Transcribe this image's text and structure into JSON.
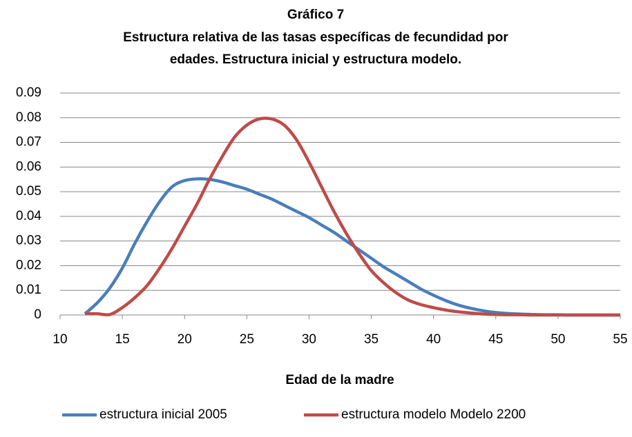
{
  "chart_data": {
    "type": "line",
    "title": "Gráfico 7",
    "subtitle": [
      "Estructura relativa de las tasas específicas de fecundidad por",
      "edades. Estructura inicial y estructura modelo."
    ],
    "x_label": "Edad de la madre",
    "x": [
      12,
      13,
      14,
      15,
      16,
      17,
      18,
      19,
      20,
      21,
      22,
      23,
      24,
      25,
      26,
      27,
      28,
      29,
      30,
      31,
      32,
      33,
      34,
      35,
      36,
      37,
      38,
      39,
      40,
      41,
      42,
      43,
      44,
      45,
      46,
      47,
      48,
      49,
      50,
      51,
      52,
      53,
      54,
      55
    ],
    "series": [
      {
        "name": "estructura inicial 2005",
        "color": "#4a7ebb",
        "values": [
          0.0005,
          0.005,
          0.011,
          0.019,
          0.029,
          0.038,
          0.046,
          0.052,
          0.0545,
          0.0552,
          0.055,
          0.054,
          0.0525,
          0.051,
          0.049,
          0.047,
          0.0445,
          0.042,
          0.0395,
          0.0365,
          0.0335,
          0.03,
          0.0265,
          0.023,
          0.0195,
          0.0165,
          0.0135,
          0.0105,
          0.008,
          0.0058,
          0.004,
          0.0027,
          0.0017,
          0.001,
          0.0006,
          0.0004,
          0.0002,
          0.0001,
          0.0001,
          0,
          0,
          0,
          0,
          0
        ]
      },
      {
        "name": "estructura modelo Modelo 2200",
        "color": "#be4b48",
        "values": [
          0.0005,
          0.0005,
          0.0002,
          0.003,
          0.007,
          0.012,
          0.019,
          0.027,
          0.036,
          0.045,
          0.055,
          0.064,
          0.072,
          0.077,
          0.0795,
          0.0795,
          0.077,
          0.071,
          0.062,
          0.052,
          0.042,
          0.033,
          0.025,
          0.018,
          0.013,
          0.009,
          0.006,
          0.0042,
          0.003,
          0.002,
          0.0013,
          0.0008,
          0.0004,
          0.0002,
          0.0001,
          0.0001,
          0,
          0,
          0,
          0,
          0,
          0,
          0,
          0
        ]
      }
    ],
    "xlim": [
      10,
      55
    ],
    "xticks": [
      10,
      15,
      20,
      25,
      30,
      35,
      40,
      45,
      50,
      55
    ],
    "ylim": [
      0,
      0.09
    ],
    "yticks": [
      0,
      0.01,
      0.02,
      0.03,
      0.04,
      0.05,
      0.06,
      0.07,
      0.08,
      0.09
    ],
    "grid": true,
    "legend": "bottom"
  }
}
